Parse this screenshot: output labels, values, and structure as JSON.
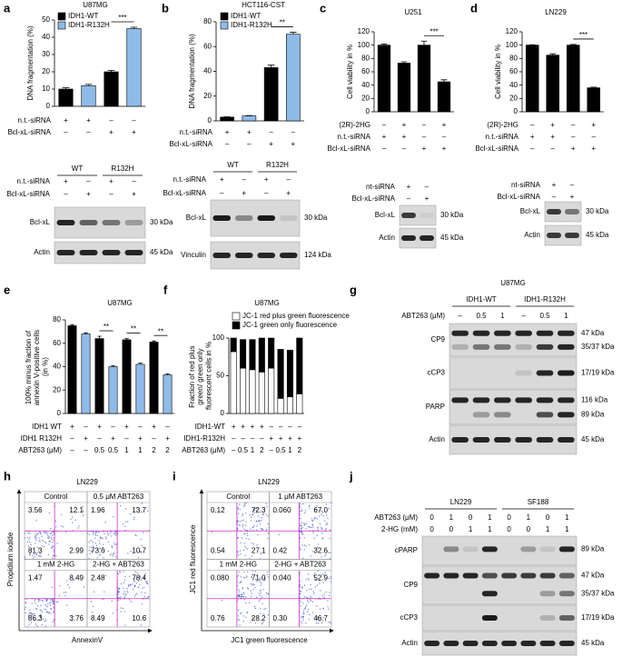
{
  "chart_data": [
    {
      "type": "bar",
      "panel": "a",
      "title": "U87MG",
      "y_label": "DNA fragmentation (%)",
      "ylim": [
        0,
        50
      ],
      "yticks": [
        0,
        10,
        20,
        30,
        40,
        50
      ],
      "series": [
        {
          "name": "IDH1-WT",
          "color": "#000000",
          "values": [
            10,
            null,
            20,
            null
          ],
          "errors": [
            0.8,
            null,
            0.8,
            null
          ]
        },
        {
          "name": "IDH1-R132H",
          "color": "#8fbbe8",
          "values": [
            null,
            12,
            null,
            45
          ],
          "errors": [
            null,
            0.7,
            null,
            0.8
          ]
        }
      ],
      "conditions": [
        {
          "label": "n.t.-siRNA",
          "marks": [
            "+",
            "+",
            "–",
            "–"
          ]
        },
        {
          "label": "Bcl-xL-siRNA",
          "marks": [
            "–",
            "–",
            "+",
            "+"
          ]
        }
      ],
      "annotations": [
        "***"
      ]
    },
    {
      "type": "bar",
      "panel": "b",
      "title": "HCT116-CST",
      "y_label": "DNA fragmentation (%)",
      "ylim": [
        0,
        80
      ],
      "yticks": [
        0,
        20,
        40,
        60,
        80
      ],
      "series": [
        {
          "name": "IDH1-WT",
          "color": "#000000",
          "values": [
            3,
            null,
            43,
            null
          ],
          "errors": [
            0.3,
            null,
            2,
            null
          ]
        },
        {
          "name": "IDH1-R132H",
          "color": "#8fbbe8",
          "values": [
            null,
            4,
            null,
            70
          ],
          "errors": [
            null,
            0.3,
            null,
            1.5
          ]
        }
      ],
      "conditions": [
        {
          "label": "n.t.-siRNA",
          "marks": [
            "+",
            "+",
            "–",
            "–"
          ]
        },
        {
          "label": "Bcl-xL-siRNA",
          "marks": [
            "–",
            "–",
            "+",
            "+"
          ]
        }
      ],
      "annotations": [
        "**"
      ]
    },
    {
      "type": "bar",
      "panel": "c",
      "title": "U251",
      "y_label": "Cell viability in %",
      "ylim": [
        0,
        120
      ],
      "yticks": [
        0,
        20,
        40,
        60,
        80,
        100,
        120
      ],
      "series": [
        {
          "color": "#000000",
          "values": [
            100,
            73,
            100,
            45
          ],
          "errors": [
            1.5,
            2,
            6,
            3
          ]
        }
      ],
      "conditions": [
        {
          "label": "(2R)-2HG",
          "marks": [
            "–",
            "+",
            "–",
            "+"
          ]
        },
        {
          "label": "n.t.-siRNA",
          "marks": [
            "+",
            "+",
            "–",
            "–"
          ]
        },
        {
          "label": "Bcl-xL-siRNA",
          "marks": [
            "–",
            "–",
            "+",
            "+"
          ]
        }
      ],
      "annotations": [
        "***"
      ]
    },
    {
      "type": "bar",
      "panel": "d",
      "title": "LN229",
      "y_label": "Cell viability in %",
      "ylim": [
        0,
        120
      ],
      "yticks": [
        0,
        20,
        40,
        60,
        80,
        100,
        120
      ],
      "series": [
        {
          "color": "#000000",
          "values": [
            100,
            85,
            100,
            36
          ],
          "errors": [
            0.5,
            2,
            1,
            1
          ]
        }
      ],
      "conditions": [
        {
          "label": "(2R)-2HG",
          "marks": [
            "–",
            "+",
            "–",
            "+"
          ]
        },
        {
          "label": "n.t.-siRNA",
          "marks": [
            "+",
            "+",
            "–",
            "–"
          ]
        },
        {
          "label": "Bcl-xL-siRNA",
          "marks": [
            "–",
            "–",
            "+",
            "+"
          ]
        }
      ],
      "annotations": [
        "***"
      ]
    },
    {
      "type": "bar",
      "panel": "e",
      "title": "U87MG",
      "y_label": "100% minus fraction of annexin V-positive cells (in %)",
      "ylim": [
        0,
        80
      ],
      "yticks": [
        0,
        20,
        40,
        60,
        80
      ],
      "series": [
        {
          "color": "#000000",
          "values": [
            75,
            null,
            64,
            null,
            63,
            null,
            61,
            null
          ],
          "errors": [
            1,
            null,
            2,
            null,
            1,
            null,
            1,
            null
          ]
        },
        {
          "color": "#8fbbe8",
          "values": [
            null,
            68,
            null,
            40,
            null,
            42,
            null,
            33
          ],
          "errors": [
            null,
            1,
            null,
            1,
            null,
            1,
            null,
            1
          ]
        }
      ],
      "conditions": [
        {
          "label": "IDH1 WT",
          "marks": [
            "+",
            "–",
            "+",
            "–",
            "+",
            "–",
            "+",
            "–"
          ]
        },
        {
          "label": "IDH1 R132H",
          "marks": [
            "–",
            "+",
            "–",
            "+",
            "–",
            "+",
            "–",
            "+"
          ]
        },
        {
          "label": "ABT263 (μM)",
          "marks": [
            "–",
            "–",
            "0.5",
            "0.5",
            "1",
            "1",
            "2",
            "2"
          ]
        }
      ],
      "annotations": [
        "**",
        "**",
        "**"
      ]
    },
    {
      "type": "bar",
      "panel": "f",
      "title": "U87MG",
      "y_label": "Fraction of red plus green/ green only fluorescent cells in %",
      "ylim": [
        0,
        100
      ],
      "yticks": [
        0,
        50,
        100
      ],
      "stacked": true,
      "series": [
        {
          "name": "JC-1 red plus green fluorescence",
          "color": "#ffffff",
          "values": [
            82,
            60,
            58,
            55,
            60,
            20,
            22,
            26
          ]
        },
        {
          "name": "JC-1 green only fluorescence",
          "color": "#000000",
          "values": [
            18,
            38,
            40,
            45,
            40,
            65,
            62,
            74
          ]
        }
      ],
      "conditions": [
        {
          "label": "IDH1-WT",
          "marks": [
            "+",
            "+",
            "+",
            "+",
            "–",
            "–",
            "–",
            "–"
          ]
        },
        {
          "label": "IDH1-R132H",
          "marks": [
            "–",
            "–",
            "–",
            "–",
            "+",
            "+",
            "+",
            "+"
          ]
        },
        {
          "label": "ABT263 (μM)",
          "marks": [
            "–",
            "0.5",
            "1",
            "2",
            "–",
            "0.5",
            "1",
            "2"
          ]
        }
      ]
    }
  ],
  "blots": [
    {
      "groups": [
        "WT",
        "R132H"
      ],
      "conditions": [
        {
          "label": "n.t.-siRNA",
          "marks": [
            "+",
            "–",
            "+",
            "–"
          ]
        },
        {
          "label": "Bcl-xL-siRNA",
          "marks": [
            "–",
            "+",
            "–",
            "+"
          ]
        }
      ],
      "bands": [
        {
          "label": "Bcl-xL",
          "sizes": [
            "30 kDa"
          ]
        },
        {
          "label": "Actin",
          "sizes": [
            "45 kDa"
          ]
        }
      ]
    },
    {
      "groups": [
        "WT",
        "R132H"
      ],
      "conditions": [
        {
          "label": "n.t.-siRNA",
          "marks": [
            "+",
            "–",
            "+",
            "–"
          ]
        },
        {
          "label": "Bcl-xL-siRNA",
          "marks": [
            "–",
            "+",
            "–",
            "+"
          ]
        }
      ],
      "bands": [
        {
          "label": "Bcl-xL",
          "sizes": [
            "30 kDa"
          ]
        },
        {
          "label": "Vinculin",
          "sizes": [
            "124 kDa"
          ]
        }
      ]
    },
    {
      "conditions": [
        {
          "label": "nt-siRNA",
          "marks": [
            "+",
            "–"
          ]
        },
        {
          "label": "Bcl-xL-siRNA",
          "marks": [
            "–",
            "+"
          ]
        }
      ],
      "bands": [
        {
          "label": "Bcl-xL",
          "sizes": [
            "30 kDa"
          ]
        },
        {
          "label": "Actin",
          "sizes": [
            "45 kDa"
          ]
        }
      ]
    },
    {
      "conditions": [
        {
          "label": "nt-siRNA",
          "marks": [
            "+",
            "–"
          ]
        },
        {
          "label": "Bcl-xL-siRNA",
          "marks": [
            "–",
            "+"
          ]
        }
      ],
      "bands": [
        {
          "label": "Bcl-xL",
          "sizes": [
            "30 kDa"
          ]
        },
        {
          "label": "Actin",
          "sizes": [
            "45 kDa"
          ]
        }
      ]
    },
    {
      "panel": "g",
      "title": "U87MG",
      "groups": [
        "IDH1-WT",
        "IDH1-R132H"
      ],
      "conditions": [
        {
          "label": "ABT263 (μM)",
          "marks": [
            "–",
            "0.5",
            "1",
            "–",
            "0.5",
            "1"
          ]
        }
      ],
      "bands": [
        {
          "label": "CP9",
          "sizes": [
            "47 kDa",
            "35/37 kDa"
          ]
        },
        {
          "label": "cCP3",
          "sizes": [
            "17/19 kDa"
          ]
        },
        {
          "label": "PARP",
          "sizes": [
            "116 kDa",
            "89 kDa"
          ]
        },
        {
          "label": "Actin",
          "sizes": [
            "45 kDa"
          ]
        }
      ]
    },
    {
      "panel": "j",
      "groups": [
        "LN229",
        "SF188"
      ],
      "conditions": [
        {
          "label": "ABT263 (μM)",
          "marks": [
            "0",
            "1",
            "0",
            "1",
            "0",
            "1",
            "0",
            "1"
          ]
        },
        {
          "label": "2-HG (mM)",
          "marks": [
            "0",
            "0",
            "1",
            "1",
            "0",
            "0",
            "1",
            "1"
          ]
        }
      ],
      "bands": [
        {
          "label": "cPARP",
          "sizes": [
            "89 kDa"
          ]
        },
        {
          "label": "CP9",
          "sizes": [
            "47 kDa",
            "35/37 kDa"
          ]
        },
        {
          "label": "cCP3",
          "sizes": [
            "17/19 kDa"
          ]
        },
        {
          "label": "Actin",
          "sizes": [
            "45 kDa"
          ]
        }
      ]
    }
  ],
  "flow": [
    {
      "panel": "h",
      "title": "LN229",
      "y_label": "Propidium iodide",
      "x_label": "AnnexinV",
      "plots": [
        {
          "label": "Control",
          "quadrants": [
            "3.56",
            "12.1",
            "81.3",
            "2.99"
          ]
        },
        {
          "label": "0.5 μM ABT263",
          "quadrants": [
            "1.96",
            "13.7",
            "73.6",
            "10.7"
          ]
        },
        {
          "label": "1 mM 2-HG",
          "quadrants": [
            "1.47",
            "8.49",
            "86.3",
            "3.76"
          ]
        },
        {
          "label": "2-HG + ABT263",
          "quadrants": [
            "2.48",
            "78.4",
            "8.49",
            "10.6"
          ]
        }
      ]
    },
    {
      "panel": "i",
      "title": "LN229",
      "y_label": "JC1 red fluorescence",
      "x_label": "JC1 green fluorescence",
      "plots": [
        {
          "label": "Control",
          "quadrants": [
            "0.12",
            "72.3",
            "0.54",
            "27.1"
          ]
        },
        {
          "label": "1 μM ABT263",
          "quadrants": [
            "0.060",
            "67.0",
            "0.42",
            "32.6"
          ]
        },
        {
          "label": "1 mM 2-HG",
          "quadrants": [
            "0.080",
            "71.0",
            "0.76",
            "28.2"
          ]
        },
        {
          "label": "2-HG + ABT263",
          "quadrants": [
            "0.040",
            "52.9",
            "0.30",
            "46.7"
          ]
        }
      ]
    }
  ]
}
